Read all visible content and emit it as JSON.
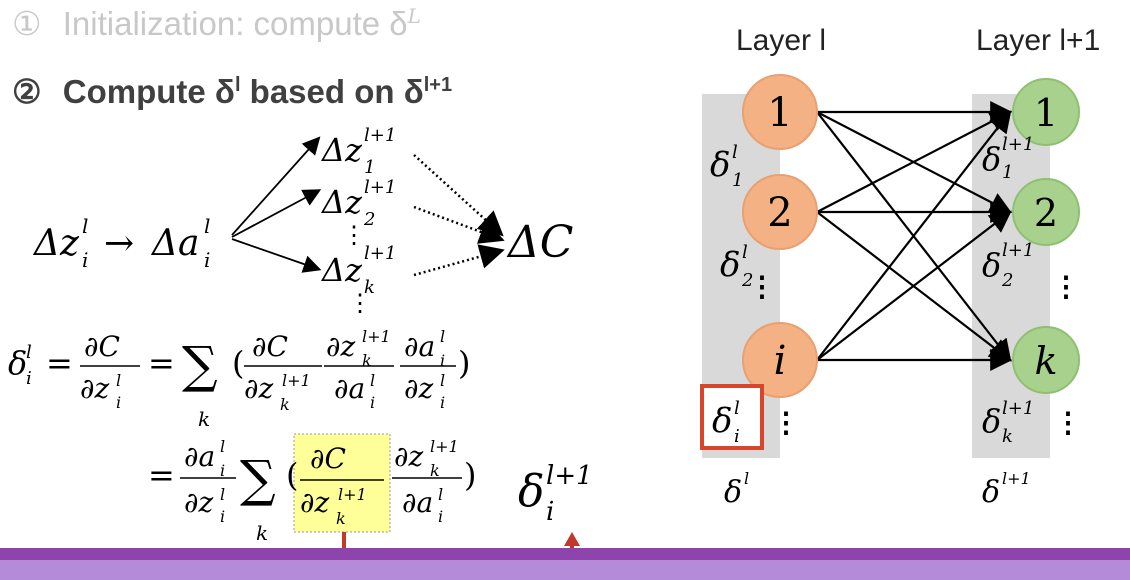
{
  "steps": [
    {
      "marker": "①",
      "text": "Initialization: compute δ",
      "sup": "L"
    },
    {
      "marker": "②",
      "text": "Compute δ",
      "sup_l": "l",
      "mid": " based on δ",
      "sup": "l+1"
    }
  ],
  "chain": {
    "left_term": "Δz",
    "left_sub": "i",
    "left_sup": "l",
    "arrow": "→",
    "mid_term": "Δa",
    "mid_sub": "i",
    "mid_sup": "l",
    "z_terms": [
      {
        "base": "Δz",
        "sub": "1",
        "sup": "l+1"
      },
      {
        "base": "Δz",
        "sub": "2",
        "sup": "l+1"
      },
      {
        "base": "Δz",
        "sub": "k",
        "sup": "l+1"
      }
    ],
    "vdots": "⋮",
    "cost": "ΔC"
  },
  "equation": {
    "line1_lhs": "δ",
    "line1_lhs_sub": "i",
    "line1_lhs_sup": "l",
    "eq": "=",
    "sum": "∑",
    "sum_index": "k",
    "side_label": "δ",
    "side_label_sub": "i",
    "side_label_sup": "l+1"
  },
  "network": {
    "title_left": "Layer l",
    "title_right": "Layer l+1",
    "left_nodes": [
      "1",
      "2",
      "i"
    ],
    "right_nodes": [
      "1",
      "2",
      "k"
    ],
    "left_deltas": [
      {
        "base": "δ",
        "sub": "1",
        "sup": "l"
      },
      {
        "base": "δ",
        "sub": "2",
        "sup": "l"
      },
      {
        "base": "δ",
        "sub": "i",
        "sup": "l"
      }
    ],
    "right_deltas": [
      {
        "base": "δ",
        "sub": "1",
        "sup": "l+1"
      },
      {
        "base": "δ",
        "sub": "2",
        "sup": "l+1"
      },
      {
        "base": "δ",
        "sub": "k",
        "sup": "l+1"
      }
    ],
    "left_bottom": {
      "base": "δ",
      "sup": "l"
    },
    "right_bottom": {
      "base": "δ",
      "sup": "l+1"
    },
    "vdots": "⋮"
  },
  "colors": {
    "left_node": "#f4b183",
    "right_node": "#a9d18e",
    "column_bg": "#d9d9d9",
    "highlight": "#ffff99",
    "red_box": "#d9452b",
    "red_arrow": "#c0392b",
    "bar_top": "#8e44ad",
    "bar_bottom": "#b38bd9"
  }
}
